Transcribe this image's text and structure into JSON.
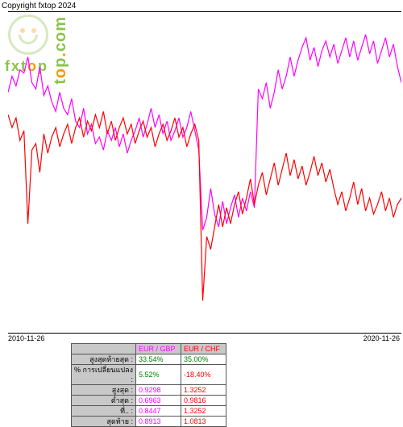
{
  "copyright": "Copyright fxtop 2024",
  "chart": {
    "type": "line",
    "x_start_label": "2010-11-26",
    "x_end_label": "2020-11-26",
    "background_color": "#ffffff",
    "border_color": "#000000",
    "series": [
      {
        "name": "EUR / GBP",
        "color": "#ff00ff",
        "values": [
          0.25,
          0.2,
          0.23,
          0.18,
          0.19,
          0.14,
          0.22,
          0.24,
          0.17,
          0.26,
          0.23,
          0.28,
          0.31,
          0.25,
          0.3,
          0.32,
          0.27,
          0.34,
          0.36,
          0.3,
          0.38,
          0.35,
          0.41,
          0.39,
          0.43,
          0.37,
          0.4,
          0.36,
          0.42,
          0.38,
          0.44,
          0.4,
          0.37,
          0.33,
          0.39,
          0.35,
          0.3,
          0.36,
          0.32,
          0.38,
          0.34,
          0.4,
          0.37,
          0.33,
          0.39,
          0.36,
          0.31,
          0.37,
          0.43,
          0.68,
          0.64,
          0.55,
          0.63,
          0.67,
          0.59,
          0.66,
          0.61,
          0.57,
          0.64,
          0.58,
          0.62,
          0.56,
          0.61,
          0.24,
          0.27,
          0.22,
          0.3,
          0.25,
          0.18,
          0.24,
          0.2,
          0.14,
          0.2,
          0.15,
          0.11,
          0.08,
          0.15,
          0.11,
          0.17,
          0.12,
          0.09,
          0.14,
          0.1,
          0.16,
          0.12,
          0.08,
          0.14,
          0.09,
          0.15,
          0.11,
          0.07,
          0.13,
          0.09,
          0.16,
          0.12,
          0.08,
          0.14,
          0.1,
          0.17,
          0.22
        ]
      },
      {
        "name": "EUR / CHF",
        "color": "#ff0000",
        "values": [
          0.32,
          0.36,
          0.33,
          0.4,
          0.37,
          0.66,
          0.43,
          0.41,
          0.5,
          0.38,
          0.44,
          0.39,
          0.36,
          0.42,
          0.38,
          0.35,
          0.41,
          0.36,
          0.33,
          0.39,
          0.34,
          0.37,
          0.32,
          0.36,
          0.31,
          0.38,
          0.34,
          0.4,
          0.36,
          0.33,
          0.38,
          0.35,
          0.41,
          0.37,
          0.34,
          0.39,
          0.36,
          0.42,
          0.38,
          0.35,
          0.4,
          0.37,
          0.33,
          0.39,
          0.36,
          0.42,
          0.38,
          0.35,
          0.4,
          0.9,
          0.7,
          0.74,
          0.67,
          0.6,
          0.67,
          0.61,
          0.66,
          0.6,
          0.56,
          0.63,
          0.58,
          0.52,
          0.6,
          0.54,
          0.5,
          0.57,
          0.52,
          0.47,
          0.54,
          0.49,
          0.44,
          0.51,
          0.46,
          0.52,
          0.48,
          0.54,
          0.5,
          0.45,
          0.51,
          0.47,
          0.53,
          0.49,
          0.55,
          0.6,
          0.56,
          0.62,
          0.58,
          0.53,
          0.6,
          0.55,
          0.62,
          0.58,
          0.63,
          0.6,
          0.56,
          0.62,
          0.58,
          0.64,
          0.6,
          0.58
        ]
      }
    ]
  },
  "table": {
    "header_bg": "#c8c8c8",
    "cell_bg": "#ffffff",
    "border_color": "#555555",
    "rows": [
      {
        "label": "",
        "gbp_label": "EUR / GBP",
        "chf_label": "EUR / CHF",
        "is_header": true
      },
      {
        "label": "สูงสุดท้ายสุด :",
        "gbp": "33.54%",
        "chf": "35.00%",
        "gbp_color": "#008000",
        "chf_color": "#008000"
      },
      {
        "label": "% การเปลี่ยนแปลง :",
        "gbp": "5.52%",
        "chf": "-18.40%",
        "gbp_color": "#008000",
        "chf_color": "#ff0000"
      },
      {
        "label": "สูงสุด :",
        "gbp": "0.9298",
        "chf": "1.3252"
      },
      {
        "label": "ต่ำสุด :",
        "gbp": "0.6963",
        "chf": "0.9816"
      },
      {
        "label": "ที่.. :",
        "gbp": "0.8447",
        "chf": "1.3252"
      },
      {
        "label": "สุดท้าย :",
        "gbp": "0.8913",
        "chf": "1.0813"
      }
    ]
  }
}
